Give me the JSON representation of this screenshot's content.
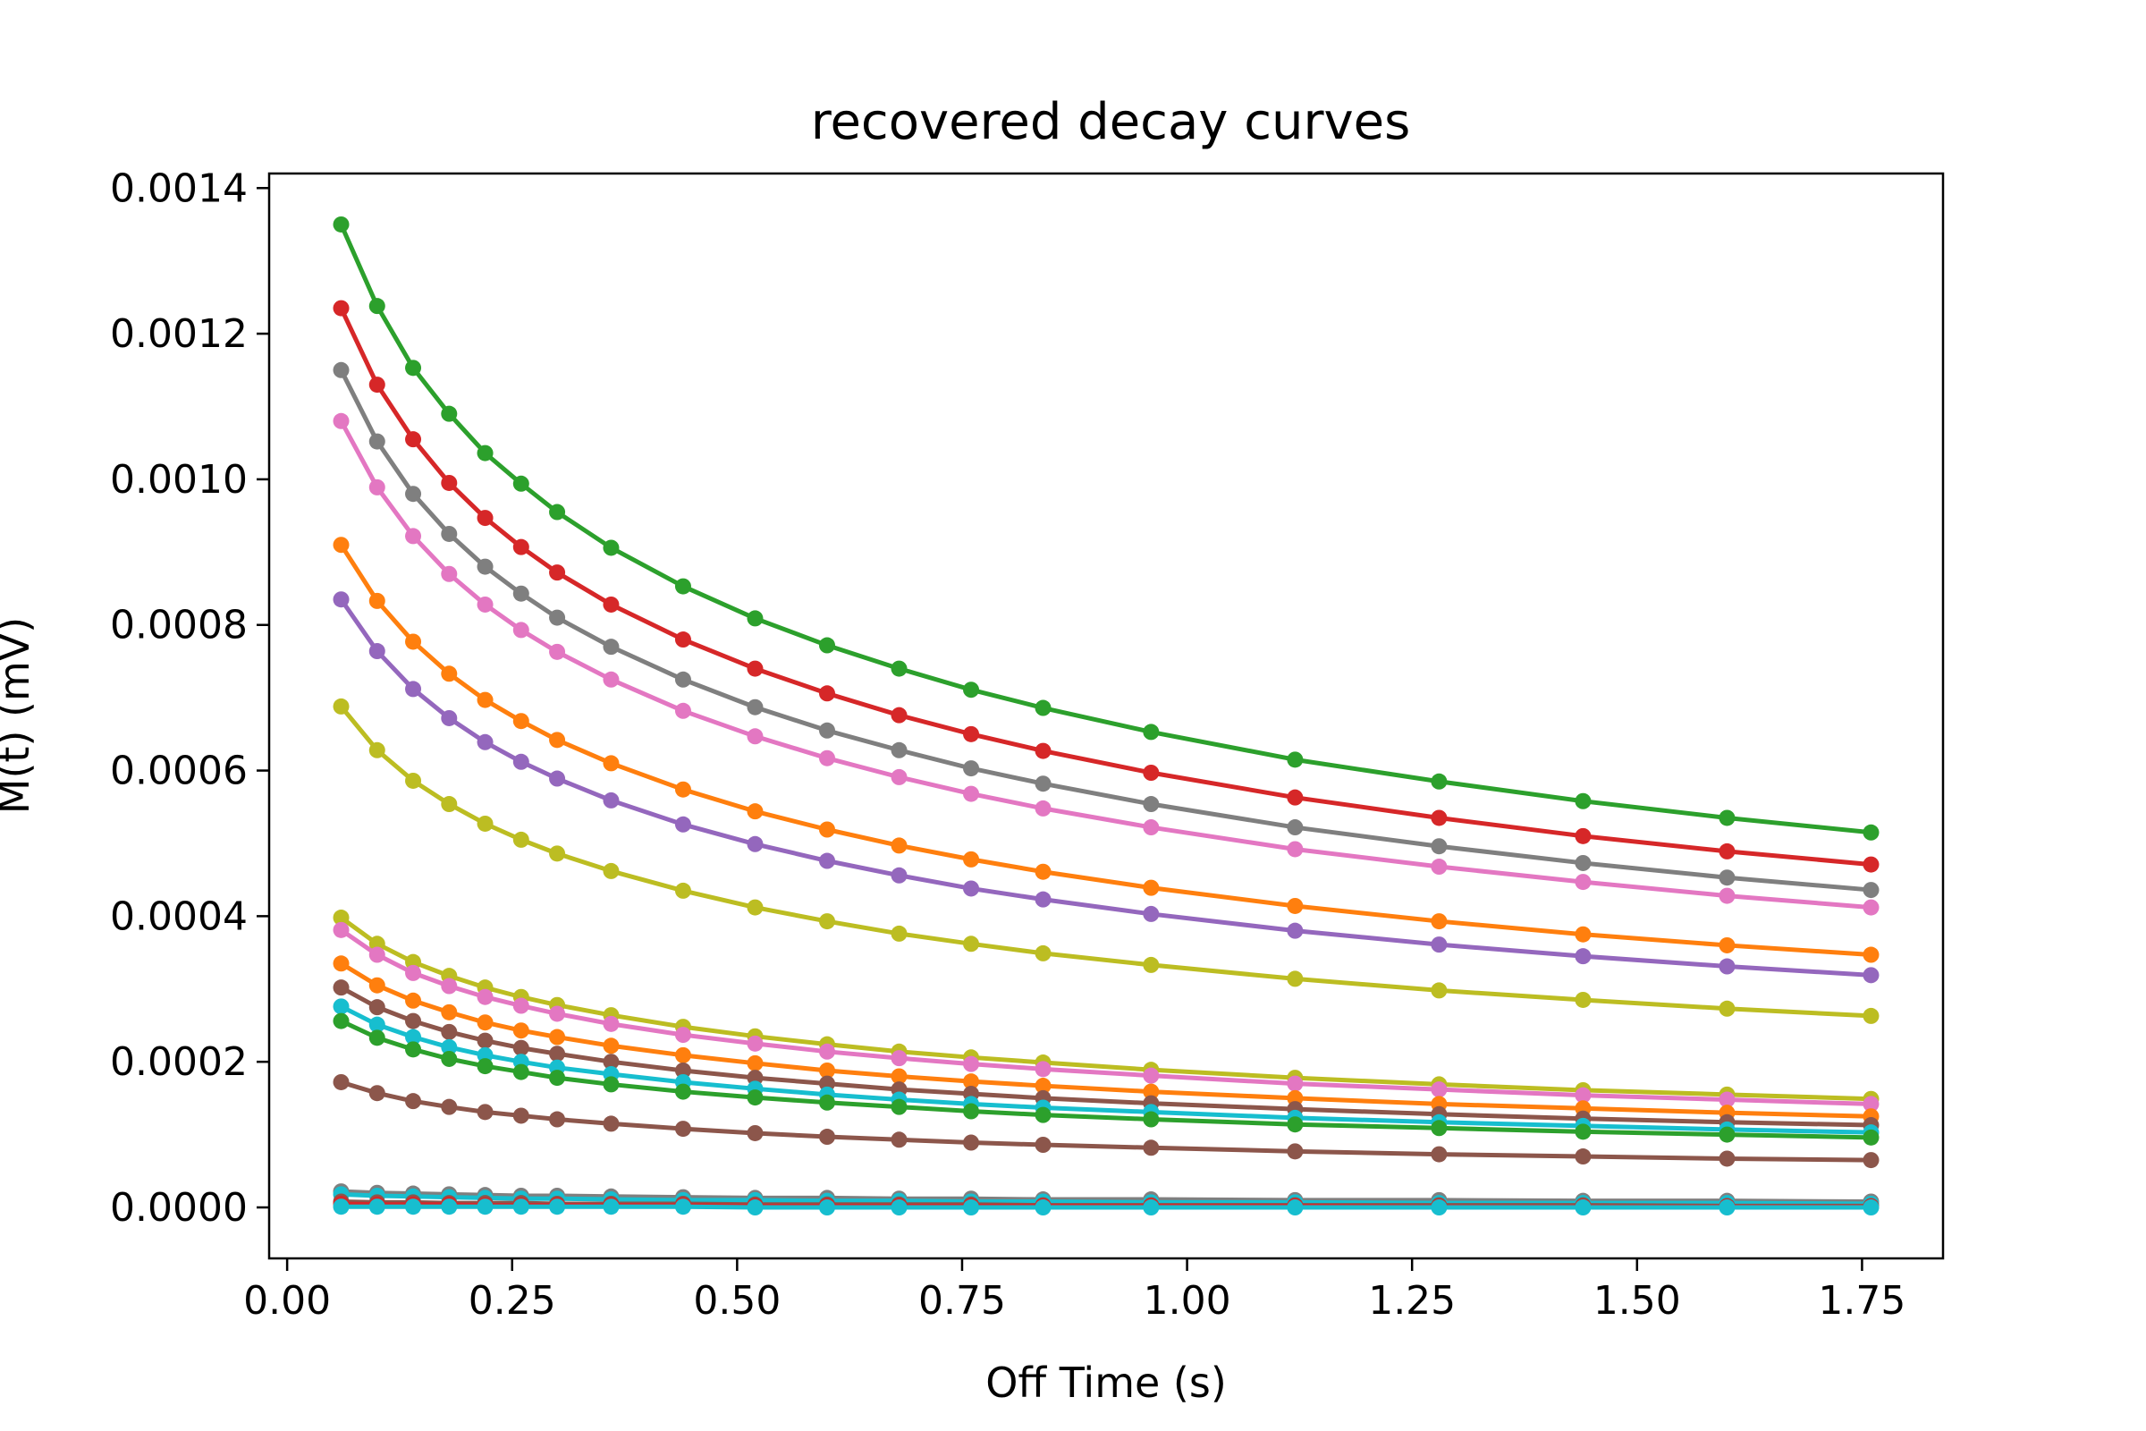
{
  "chart_data": {
    "type": "line",
    "title": "recovered decay curves",
    "xlabel": "Off Time (s)",
    "ylabel": "M(t) (mV)",
    "xlim": [
      -0.02,
      1.84
    ],
    "ylim": [
      -7e-05,
      0.00142
    ],
    "xticks": [
      0.0,
      0.25,
      0.5,
      0.75,
      1.0,
      1.25,
      1.5,
      1.75
    ],
    "xtick_labels": [
      "0.00",
      "0.25",
      "0.50",
      "0.75",
      "1.00",
      "1.25",
      "1.50",
      "1.75"
    ],
    "yticks": [
      0.0,
      0.0002,
      0.0004,
      0.0006,
      0.0008,
      0.001,
      0.0012,
      0.0014
    ],
    "ytick_labels": [
      "0.0000",
      "0.0002",
      "0.0004",
      "0.0006",
      "0.0008",
      "0.0010",
      "0.0012",
      "0.0014"
    ],
    "grid": false,
    "legend": "none",
    "marker": "circle",
    "x": [
      0.06,
      0.1,
      0.14,
      0.18,
      0.22,
      0.26,
      0.3,
      0.36,
      0.44,
      0.52,
      0.6,
      0.68,
      0.76,
      0.84,
      0.96,
      1.12,
      1.28,
      1.44,
      1.6,
      1.76
    ],
    "series": [
      {
        "color": "#2ca02c",
        "values": [
          0.00135,
          0.001238,
          0.001153,
          0.00109,
          0.001036,
          0.000994,
          0.000955,
          0.000906,
          0.000853,
          0.000809,
          0.000772,
          0.00074,
          0.000711,
          0.000686,
          0.000653,
          0.000615,
          0.000585,
          0.000558,
          0.000535,
          0.000515
        ]
      },
      {
        "color": "#d62728",
        "values": [
          0.001235,
          0.00113,
          0.001055,
          0.000995,
          0.000947,
          0.000907,
          0.000872,
          0.000828,
          0.00078,
          0.00074,
          0.000706,
          0.000676,
          0.00065,
          0.000627,
          0.000597,
          0.000563,
          0.000535,
          0.00051,
          0.000489,
          0.000471
        ]
      },
      {
        "color": "#7f7f7f",
        "values": [
          0.00115,
          0.001052,
          0.00098,
          0.000925,
          0.00088,
          0.000843,
          0.00081,
          0.00077,
          0.000725,
          0.000687,
          0.000655,
          0.000628,
          0.000603,
          0.000582,
          0.000554,
          0.000522,
          0.000496,
          0.000473,
          0.000453,
          0.000436
        ]
      },
      {
        "color": "#e377c2",
        "values": [
          0.00108,
          0.000989,
          0.000922,
          0.00087,
          0.000828,
          0.000793,
          0.000763,
          0.000725,
          0.000682,
          0.000647,
          0.000617,
          0.000591,
          0.000568,
          0.000548,
          0.000522,
          0.000492,
          0.000468,
          0.000447,
          0.000428,
          0.000412
        ]
      },
      {
        "color": "#ff7f0e",
        "values": [
          0.00091,
          0.000833,
          0.000777,
          0.000733,
          0.000697,
          0.000668,
          0.000642,
          0.00061,
          0.000574,
          0.000544,
          0.000519,
          0.000497,
          0.000478,
          0.000461,
          0.000439,
          0.000414,
          0.000393,
          0.000375,
          0.00036,
          0.000347
        ]
      },
      {
        "color": "#9467bd",
        "values": [
          0.000835,
          0.000764,
          0.000712,
          0.000672,
          0.000639,
          0.000612,
          0.000589,
          0.000559,
          0.000526,
          0.000499,
          0.000476,
          0.000456,
          0.000438,
          0.000423,
          0.000403,
          0.00038,
          0.000361,
          0.000345,
          0.000331,
          0.000319
        ]
      },
      {
        "color": "#bcbd22",
        "values": [
          0.000688,
          0.000628,
          0.000586,
          0.000554,
          0.000527,
          0.000505,
          0.000486,
          0.000462,
          0.000435,
          0.000412,
          0.000393,
          0.000376,
          0.000362,
          0.000349,
          0.000333,
          0.000314,
          0.000298,
          0.000285,
          0.000273,
          0.000263
        ]
      },
      {
        "color": "#bcbd22",
        "values": [
          0.000398,
          0.000362,
          0.000337,
          0.000318,
          0.000302,
          0.000289,
          0.000278,
          0.000264,
          0.000248,
          0.000235,
          0.000224,
          0.000214,
          0.000206,
          0.000199,
          0.000189,
          0.000178,
          0.000169,
          0.000161,
          0.000155,
          0.000149
        ]
      },
      {
        "color": "#e377c2",
        "values": [
          0.000381,
          0.000347,
          0.000322,
          0.000304,
          0.000289,
          0.000277,
          0.000266,
          0.000252,
          0.000237,
          0.000225,
          0.000214,
          0.000205,
          0.000197,
          0.00019,
          0.000181,
          0.00017,
          0.000162,
          0.000154,
          0.000148,
          0.000142
        ]
      },
      {
        "color": "#ff7f0e",
        "values": [
          0.000335,
          0.000305,
          0.000284,
          0.000268,
          0.000254,
          0.000243,
          0.000234,
          0.000222,
          0.000209,
          0.000198,
          0.000188,
          0.00018,
          0.000173,
          0.000167,
          0.000159,
          0.00015,
          0.000142,
          0.000136,
          0.00013,
          0.000125
        ]
      },
      {
        "color": "#8c564b",
        "values": [
          0.000302,
          0.000275,
          0.000256,
          0.000241,
          0.000229,
          0.000219,
          0.000211,
          0.0002,
          0.000188,
          0.000178,
          0.00017,
          0.000162,
          0.000156,
          0.00015,
          0.000143,
          0.000135,
          0.000128,
          0.000122,
          0.000117,
          0.000113
        ]
      },
      {
        "color": "#17becf",
        "values": [
          0.000276,
          0.000251,
          0.000234,
          0.00022,
          0.000209,
          0.0002,
          0.000192,
          0.000183,
          0.000172,
          0.000163,
          0.000155,
          0.000148,
          0.000142,
          0.000137,
          0.000131,
          0.000123,
          0.000117,
          0.000112,
          0.000107,
          0.000103
        ]
      },
      {
        "color": "#2ca02c",
        "values": [
          0.000256,
          0.000233,
          0.000217,
          0.000204,
          0.000194,
          0.000186,
          0.000178,
          0.000169,
          0.000159,
          0.000151,
          0.000144,
          0.000138,
          0.000132,
          0.000127,
          0.000121,
          0.000114,
          0.000109,
          0.000104,
          0.0001,
          9.6e-05
        ]
      },
      {
        "color": "#8c564b",
        "values": [
          0.000172,
          0.000157,
          0.000146,
          0.000138,
          0.000131,
          0.000126,
          0.000121,
          0.000115,
          0.000108,
          0.000102,
          9.7e-05,
          9.3e-05,
          8.9e-05,
          8.6e-05,
          8.2e-05,
          7.7e-05,
          7.3e-05,
          7e-05,
          6.7e-05,
          6.5e-05
        ]
      },
      {
        "color": "#7f7f7f",
        "values": [
          2.2e-05,
          2e-05,
          1.9e-05,
          1.8e-05,
          1.7e-05,
          1.6e-05,
          1.6e-05,
          1.5e-05,
          1.4e-05,
          1.3e-05,
          1.3e-05,
          1.2e-05,
          1.2e-05,
          1.1e-05,
          1.1e-05,
          1e-05,
          1e-05,
          9e-06,
          9e-06,
          8e-06
        ]
      },
      {
        "color": "#17becf",
        "values": [
          1.8e-05,
          1.6e-05,
          1.5e-05,
          1.4e-05,
          1.3e-05,
          1.2e-05,
          1.2e-05,
          1.1e-05,
          1e-05,
          1e-05,
          9e-06,
          9e-06,
          8e-06,
          8e-06,
          7e-06,
          7e-06,
          6e-06,
          6e-06,
          6e-06,
          5e-06
        ]
      },
      {
        "color": "#8c564b",
        "values": [
          8e-06,
          7e-06,
          7e-06,
          6e-06,
          6e-06,
          6e-06,
          5e-06,
          5e-06,
          5e-06,
          4e-06,
          4e-06,
          4e-06,
          4e-06,
          3e-06,
          3e-06,
          3e-06,
          3e-06,
          3e-06,
          2e-06,
          2e-06
        ]
      },
      {
        "color": "#d62728",
        "values": [
          5e-06,
          4e-06,
          4e-06,
          4e-06,
          3e-06,
          3e-06,
          3e-06,
          3e-06,
          3e-06,
          2e-06,
          2e-06,
          2e-06,
          2e-06,
          2e-06,
          2e-06,
          2e-06,
          1e-06,
          1e-06,
          1e-06,
          1e-06
        ]
      },
      {
        "color": "#17becf",
        "values": [
          1e-06,
          1e-06,
          1e-06,
          1e-06,
          1e-06,
          1e-06,
          1e-06,
          1e-06,
          1e-06,
          0.0,
          0.0,
          0.0,
          0.0,
          0.0,
          0.0,
          0.0,
          0.0,
          0.0,
          0.0,
          0.0
        ]
      }
    ]
  }
}
